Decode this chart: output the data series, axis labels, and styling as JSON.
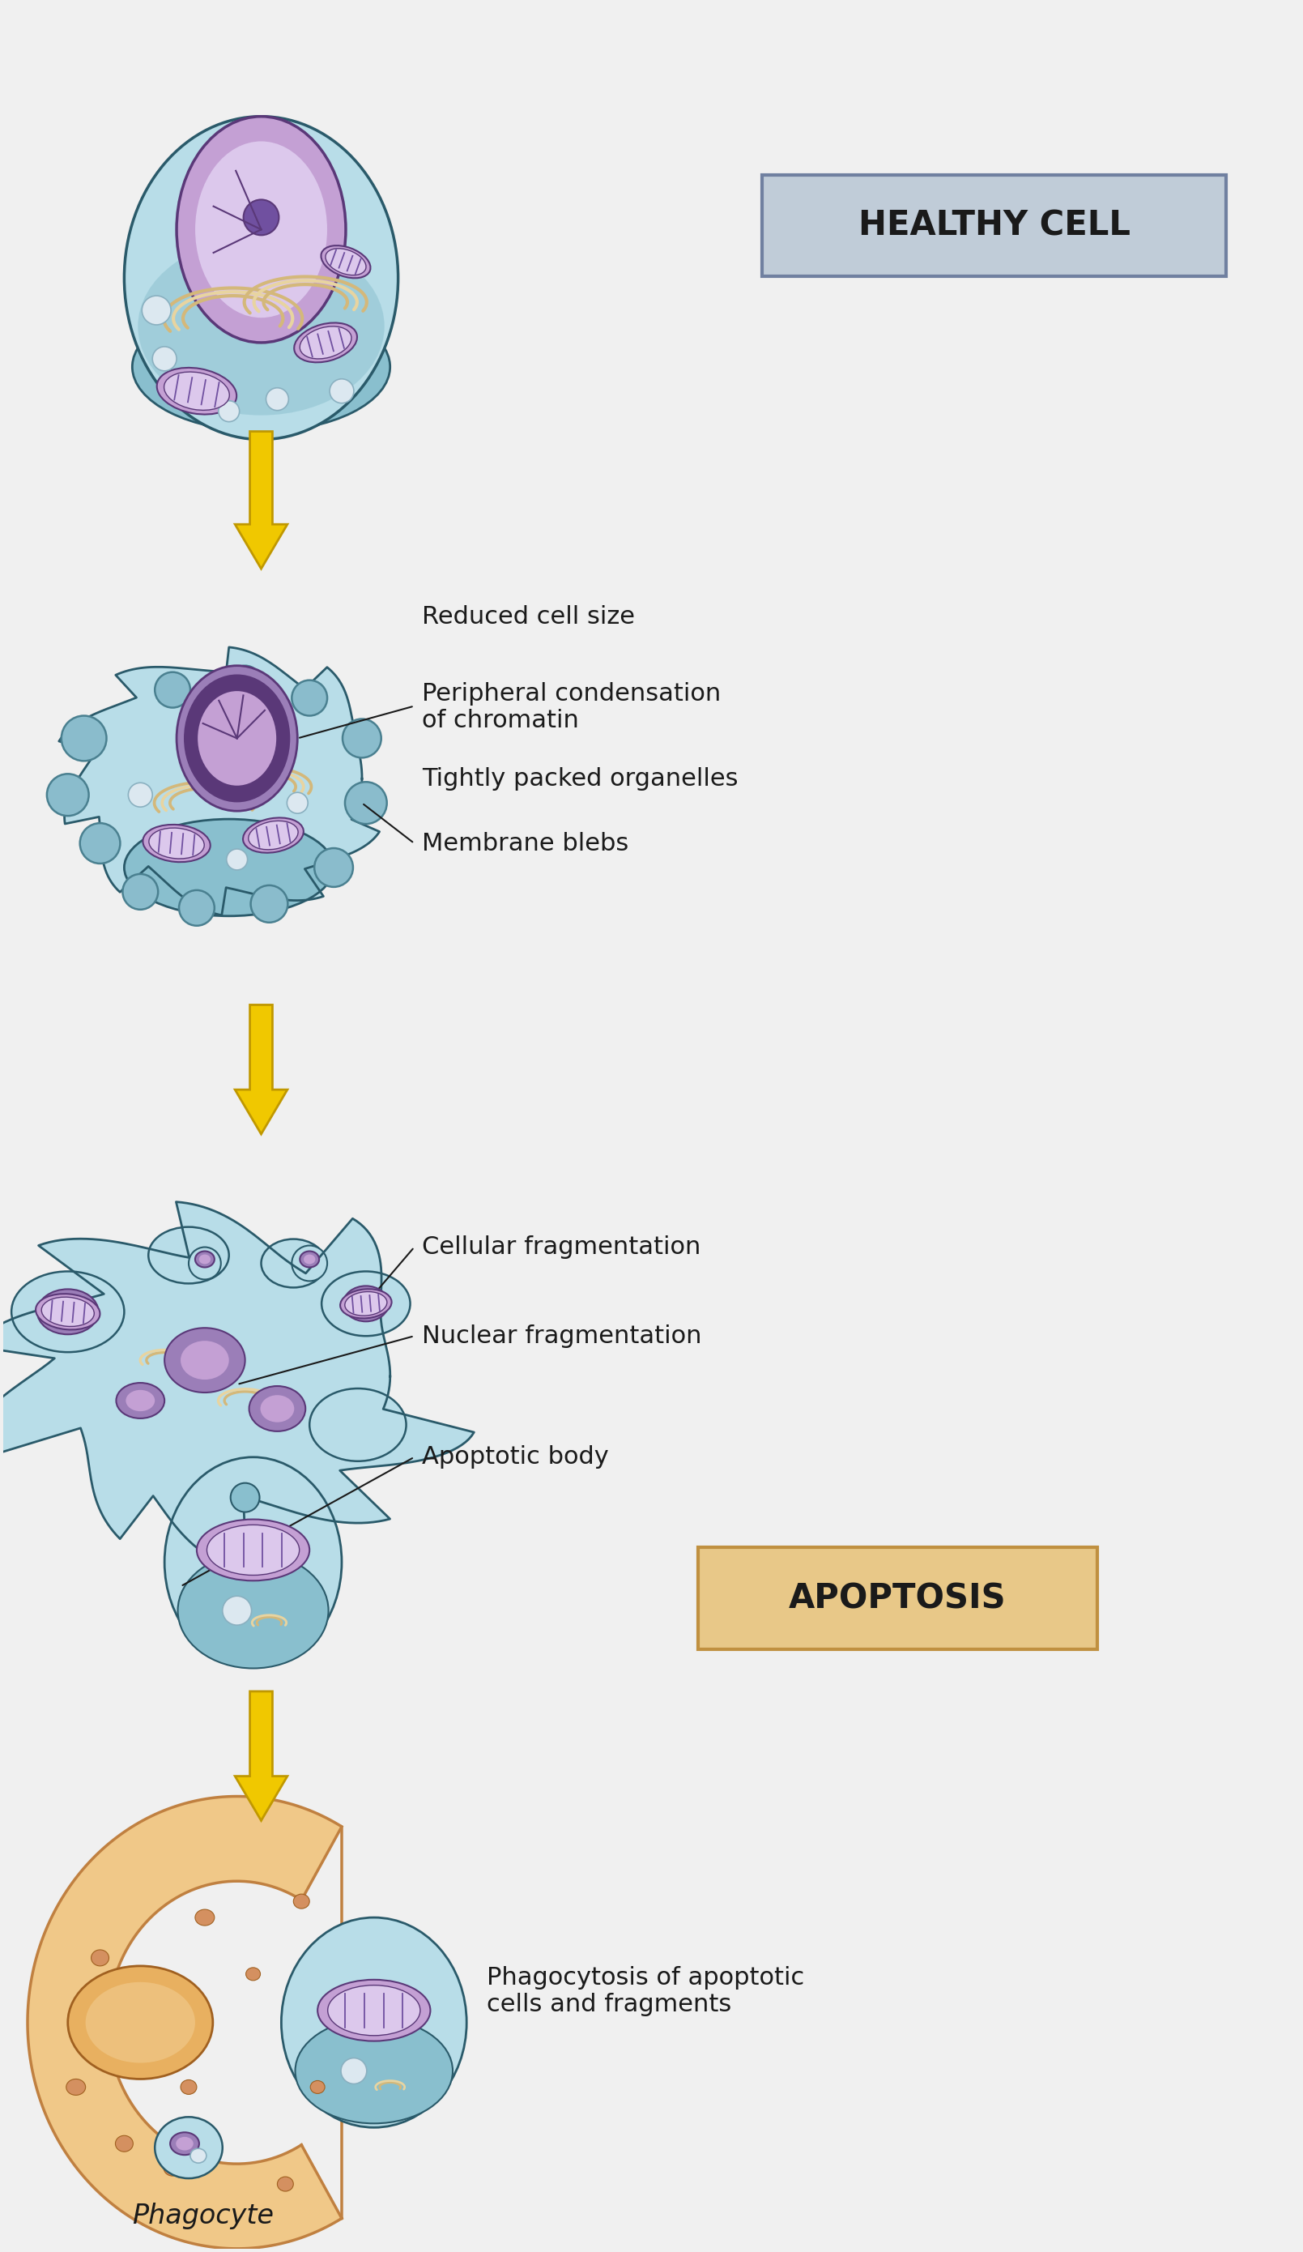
{
  "background_color": "#f0f0f0",
  "fig_width": 16.09,
  "fig_height": 27.8,
  "labels": {
    "healthy_cell": "HEALTHY CELL",
    "reduced_cell_size": "Reduced cell size",
    "peripheral_condensation": "Peripheral condensation\nof chromatin",
    "tightly_packed": "Tightly packed organelles",
    "membrane_blebs": "Membrane blebs",
    "cellular_fragmentation": "Cellular fragmentation",
    "nuclear_fragmentation": "Nuclear fragmentation",
    "apoptotic_body": "Apoptotic body",
    "apoptosis": "APOPTOSIS",
    "phagocytosis": "Phagocytosis of apoptotic\ncells and fragments",
    "phagocyte": "Phagocyte"
  },
  "colors": {
    "bg": "#f0f0f0",
    "cell_light": "#b8dde8",
    "cell_medium": "#89bfce",
    "cell_dark": "#5a9aaa",
    "cell_edge": "#2a5a6a",
    "nucleus_purple": "#9b7eb8",
    "nucleus_mid": "#c4a0d4",
    "nucleus_light": "#dcc8ec",
    "nucleus_dark": "#5a3878",
    "nucleolus": "#7050a0",
    "er_tan": "#d4b87a",
    "er_light": "#e8d4a0",
    "mito_fill": "#c4a0d4",
    "mito_edge": "#5a3878",
    "mito_ridge": "#7050a0",
    "vacuole_fill": "#dce8f0",
    "vacuole_edge": "#8ab0c0",
    "bleb_fill": "#8abccc",
    "bleb_edge": "#4a8090",
    "arrow_fill": "#f0c800",
    "arrow_edge": "#c09800",
    "hc_box_fill": "#c0ccd8",
    "hc_box_edge": "#7080a0",
    "apo_box_fill": "#e8c888",
    "apo_box_edge": "#c09040",
    "phag_fill": "#f0c888",
    "phag_edge": "#c08040",
    "phag_nuc_fill": "#e8b060",
    "phag_nuc_edge": "#a06020",
    "phag_dot": "#d49060",
    "label_color": "#1a1a1a",
    "line_color": "#1a1a1a"
  }
}
